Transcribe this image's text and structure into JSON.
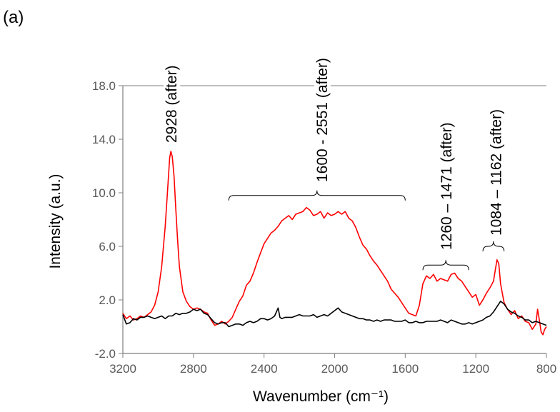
{
  "panel_label": "(a)",
  "colors": {
    "after": "#ff0000",
    "before": "#000000",
    "axis": "#7f7f7f",
    "tick_text": "#595959"
  },
  "chart_data": {
    "type": "line",
    "title": "",
    "xlabel": "Wavenumber (cm⁻¹)",
    "ylabel": "Intensity (a.u.)",
    "xlim": [
      3200,
      800
    ],
    "ylim": [
      -2.0,
      18.0
    ],
    "x_reversed": true,
    "xticks": [
      3200,
      2800,
      2400,
      2000,
      1600,
      1200,
      800
    ],
    "xtick_labels": [
      "3200",
      "2800",
      "2400",
      "2000",
      "1600",
      "1200",
      "800"
    ],
    "yticks": [
      -2.0,
      2.0,
      6.0,
      10.0,
      14.0,
      18.0
    ],
    "ytick_labels": [
      "-2.0",
      "2.0",
      "6.0",
      "10.0",
      "14.0",
      "18.0"
    ],
    "grid": false,
    "legend": "none",
    "series": [
      {
        "color": "#ff0000",
        "points": [
          [
            3200,
            1.0
          ],
          [
            3180,
            0.6
          ],
          [
            3160,
            0.8
          ],
          [
            3140,
            0.5
          ],
          [
            3120,
            0.6
          ],
          [
            3100,
            0.8
          ],
          [
            3080,
            0.7
          ],
          [
            3060,
            0.9
          ],
          [
            3040,
            1.1
          ],
          [
            3020,
            1.6
          ],
          [
            3000,
            2.6
          ],
          [
            2980,
            4.5
          ],
          [
            2960,
            7.5
          ],
          [
            2945,
            10.5
          ],
          [
            2935,
            12.6
          ],
          [
            2928,
            13.1
          ],
          [
            2920,
            12.7
          ],
          [
            2910,
            11.2
          ],
          [
            2900,
            8.8
          ],
          [
            2890,
            6.5
          ],
          [
            2880,
            4.5
          ],
          [
            2860,
            2.6
          ],
          [
            2840,
            1.9
          ],
          [
            2820,
            1.5
          ],
          [
            2800,
            1.3
          ],
          [
            2780,
            1.4
          ],
          [
            2760,
            1.3
          ],
          [
            2740,
            1.1
          ],
          [
            2720,
            1.0
          ],
          [
            2700,
            0.5
          ],
          [
            2680,
            0.1
          ],
          [
            2660,
            0.2
          ],
          [
            2640,
            0.4
          ],
          [
            2620,
            0.2
          ],
          [
            2600,
            0.4
          ],
          [
            2580,
            0.7
          ],
          [
            2560,
            1.3
          ],
          [
            2540,
            1.9
          ],
          [
            2520,
            2.3
          ],
          [
            2500,
            3.1
          ],
          [
            2480,
            3.4
          ],
          [
            2460,
            4.0
          ],
          [
            2440,
            4.8
          ],
          [
            2420,
            5.5
          ],
          [
            2400,
            6.2
          ],
          [
            2380,
            6.6
          ],
          [
            2360,
            7.0
          ],
          [
            2340,
            7.2
          ],
          [
            2320,
            7.5
          ],
          [
            2300,
            7.9
          ],
          [
            2280,
            8.1
          ],
          [
            2260,
            8.3
          ],
          [
            2240,
            8.0
          ],
          [
            2220,
            8.4
          ],
          [
            2200,
            8.5
          ],
          [
            2180,
            8.6
          ],
          [
            2160,
            8.9
          ],
          [
            2140,
            8.7
          ],
          [
            2120,
            8.3
          ],
          [
            2100,
            8.4
          ],
          [
            2080,
            8.6
          ],
          [
            2060,
            8.1
          ],
          [
            2040,
            8.5
          ],
          [
            2020,
            8.3
          ],
          [
            2000,
            8.4
          ],
          [
            1980,
            8.6
          ],
          [
            1960,
            8.4
          ],
          [
            1940,
            8.6
          ],
          [
            1920,
            8.1
          ],
          [
            1900,
            7.9
          ],
          [
            1880,
            7.4
          ],
          [
            1860,
            6.7
          ],
          [
            1840,
            6.1
          ],
          [
            1820,
            5.8
          ],
          [
            1800,
            5.3
          ],
          [
            1780,
            4.9
          ],
          [
            1760,
            4.6
          ],
          [
            1740,
            4.2
          ],
          [
            1720,
            3.8
          ],
          [
            1700,
            3.4
          ],
          [
            1680,
            2.8
          ],
          [
            1660,
            2.5
          ],
          [
            1640,
            2.2
          ],
          [
            1620,
            1.8
          ],
          [
            1600,
            1.4
          ],
          [
            1580,
            1.0
          ],
          [
            1560,
            0.9
          ],
          [
            1540,
            0.8
          ],
          [
            1520,
            1.6
          ],
          [
            1500,
            3.2
          ],
          [
            1480,
            3.8
          ],
          [
            1460,
            3.6
          ],
          [
            1440,
            3.9
          ],
          [
            1420,
            3.4
          ],
          [
            1400,
            3.6
          ],
          [
            1380,
            3.5
          ],
          [
            1360,
            3.4
          ],
          [
            1340,
            3.9
          ],
          [
            1320,
            4.0
          ],
          [
            1300,
            3.6
          ],
          [
            1280,
            3.4
          ],
          [
            1260,
            3.0
          ],
          [
            1240,
            2.6
          ],
          [
            1220,
            2.2
          ],
          [
            1200,
            2.4
          ],
          [
            1180,
            1.6
          ],
          [
            1160,
            2.0
          ],
          [
            1140,
            2.5
          ],
          [
            1120,
            2.9
          ],
          [
            1100,
            3.4
          ],
          [
            1090,
            4.2
          ],
          [
            1080,
            5.0
          ],
          [
            1070,
            4.7
          ],
          [
            1060,
            3.2
          ],
          [
            1040,
            1.8
          ],
          [
            1020,
            1.3
          ],
          [
            1000,
            0.9
          ],
          [
            980,
            1.2
          ],
          [
            960,
            0.6
          ],
          [
            940,
            0.8
          ],
          [
            920,
            0.4
          ],
          [
            900,
            0.3
          ],
          [
            880,
            -0.2
          ],
          [
            860,
            0.2
          ],
          [
            850,
            1.3
          ],
          [
            840,
            0.5
          ],
          [
            830,
            -0.4
          ],
          [
            820,
            -0.6
          ],
          [
            810,
            -0.2
          ],
          [
            800,
            0.0
          ]
        ]
      },
      {
        "color": "#000000",
        "points": [
          [
            3200,
            0.9
          ],
          [
            3180,
            0.2
          ],
          [
            3160,
            0.3
          ],
          [
            3140,
            0.6
          ],
          [
            3120,
            0.5
          ],
          [
            3100,
            0.7
          ],
          [
            3080,
            0.7
          ],
          [
            3060,
            0.8
          ],
          [
            3040,
            0.7
          ],
          [
            3020,
            0.6
          ],
          [
            3000,
            0.7
          ],
          [
            2980,
            0.8
          ],
          [
            2960,
            0.6
          ],
          [
            2940,
            0.8
          ],
          [
            2920,
            0.8
          ],
          [
            2900,
            1.0
          ],
          [
            2880,
            0.9
          ],
          [
            2860,
            1.0
          ],
          [
            2840,
            1.0
          ],
          [
            2820,
            1.1
          ],
          [
            2800,
            1.3
          ],
          [
            2780,
            1.2
          ],
          [
            2760,
            1.3
          ],
          [
            2740,
            1.0
          ],
          [
            2720,
            0.9
          ],
          [
            2700,
            0.6
          ],
          [
            2680,
            0.3
          ],
          [
            2660,
            0.2
          ],
          [
            2640,
            0.3
          ],
          [
            2620,
            0.3
          ],
          [
            2600,
            0.0
          ],
          [
            2580,
            0.1
          ],
          [
            2560,
            0.2
          ],
          [
            2540,
            0.2
          ],
          [
            2520,
            0.1
          ],
          [
            2500,
            0.3
          ],
          [
            2480,
            0.4
          ],
          [
            2460,
            0.3
          ],
          [
            2440,
            0.4
          ],
          [
            2420,
            0.6
          ],
          [
            2400,
            0.6
          ],
          [
            2380,
            0.5
          ],
          [
            2360,
            0.6
          ],
          [
            2340,
            0.8
          ],
          [
            2320,
            1.4
          ],
          [
            2310,
            0.7
          ],
          [
            2300,
            0.6
          ],
          [
            2280,
            0.7
          ],
          [
            2260,
            0.7
          ],
          [
            2240,
            0.7
          ],
          [
            2220,
            0.8
          ],
          [
            2200,
            0.9
          ],
          [
            2180,
            0.8
          ],
          [
            2160,
            0.8
          ],
          [
            2140,
            0.8
          ],
          [
            2120,
            0.9
          ],
          [
            2100,
            0.7
          ],
          [
            2080,
            0.8
          ],
          [
            2060,
            0.9
          ],
          [
            2040,
            0.8
          ],
          [
            2020,
            1.0
          ],
          [
            2000,
            1.2
          ],
          [
            1980,
            1.4
          ],
          [
            1960,
            1.1
          ],
          [
            1940,
            1.0
          ],
          [
            1920,
            0.9
          ],
          [
            1900,
            0.8
          ],
          [
            1880,
            0.7
          ],
          [
            1860,
            0.6
          ],
          [
            1840,
            0.6
          ],
          [
            1820,
            0.5
          ],
          [
            1800,
            0.5
          ],
          [
            1780,
            0.4
          ],
          [
            1760,
            0.5
          ],
          [
            1740,
            0.4
          ],
          [
            1720,
            0.5
          ],
          [
            1700,
            0.5
          ],
          [
            1680,
            0.5
          ],
          [
            1660,
            0.4
          ],
          [
            1640,
            0.4
          ],
          [
            1620,
            0.4
          ],
          [
            1600,
            0.5
          ],
          [
            1580,
            0.3
          ],
          [
            1560,
            0.3
          ],
          [
            1540,
            0.4
          ],
          [
            1520,
            0.3
          ],
          [
            1500,
            0.3
          ],
          [
            1480,
            0.4
          ],
          [
            1460,
            0.4
          ],
          [
            1440,
            0.4
          ],
          [
            1420,
            0.4
          ],
          [
            1400,
            0.5
          ],
          [
            1380,
            0.4
          ],
          [
            1360,
            0.3
          ],
          [
            1340,
            0.5
          ],
          [
            1320,
            0.4
          ],
          [
            1300,
            0.3
          ],
          [
            1280,
            0.2
          ],
          [
            1260,
            0.2
          ],
          [
            1240,
            0.3
          ],
          [
            1220,
            0.2
          ],
          [
            1200,
            0.3
          ],
          [
            1180,
            0.4
          ],
          [
            1160,
            0.5
          ],
          [
            1140,
            0.7
          ],
          [
            1120,
            0.8
          ],
          [
            1100,
            1.1
          ],
          [
            1080,
            1.5
          ],
          [
            1060,
            1.9
          ],
          [
            1040,
            1.7
          ],
          [
            1020,
            1.3
          ],
          [
            1000,
            1.1
          ],
          [
            980,
            1.0
          ],
          [
            960,
            0.8
          ],
          [
            940,
            0.7
          ],
          [
            920,
            0.5
          ],
          [
            900,
            0.5
          ],
          [
            880,
            0.3
          ],
          [
            860,
            0.4
          ],
          [
            840,
            0.3
          ],
          [
            820,
            0.2
          ],
          [
            800,
            0.1
          ]
        ]
      }
    ],
    "annotations": [
      {
        "text": "2928 (after)",
        "x": 2928,
        "bracket": null
      },
      {
        "text": "1600 - 2551 (after)",
        "x": 2075,
        "bracket": [
          2600,
          1600
        ],
        "bracket_y": 9.8
      },
      {
        "text": "1260 – 1471 (after)",
        "x": 1370,
        "bracket": [
          1500,
          1240
        ],
        "bracket_y": 4.6
      },
      {
        "text": "1084 – 1162  (after)",
        "x": 1090,
        "bracket": [
          1160,
          1040
        ],
        "bracket_y": 6.0
      }
    ]
  }
}
